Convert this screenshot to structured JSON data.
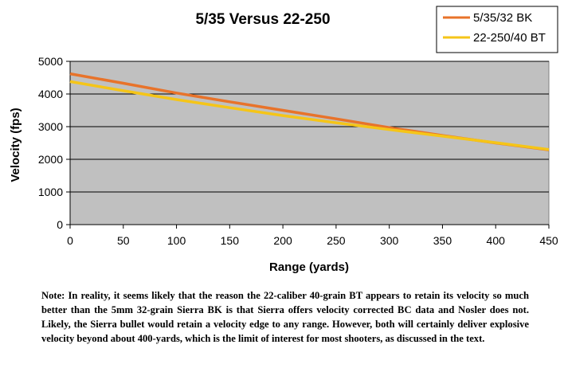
{
  "chart_data": {
    "type": "line",
    "title": "5/35 Versus 22-250",
    "xlabel": "Range (yards)",
    "ylabel": "Velocity (fps)",
    "xlim": [
      0,
      450
    ],
    "ylim": [
      0,
      5000
    ],
    "xticks": [
      0,
      50,
      100,
      150,
      200,
      250,
      300,
      350,
      400,
      450
    ],
    "yticks": [
      0,
      1000,
      2000,
      3000,
      4000,
      5000
    ],
    "grid": "horizontal",
    "legend": "top-right",
    "plot_background": "#c0c0c0",
    "series": [
      {
        "name": "5/35/32 BK",
        "color": "#e8732a",
        "x": [
          0,
          50,
          100,
          150,
          200,
          250,
          300,
          350,
          400,
          450
        ],
        "y": [
          4620,
          4330,
          4030,
          3760,
          3500,
          3240,
          2970,
          2730,
          2500,
          2290
        ]
      },
      {
        "name": "22-250/40 BT",
        "color": "#f5c518",
        "x": [
          0,
          50,
          100,
          150,
          200,
          250,
          300,
          350,
          400,
          450
        ],
        "y": [
          4380,
          4100,
          3830,
          3580,
          3340,
          3120,
          2910,
          2710,
          2510,
          2300
        ]
      }
    ]
  },
  "note": "Note: In reality, it seems likely that the reason the 22-caliber 40-grain BT appears to retain its velocity so much better than the 5mm 32-grain Sierra BK is that Sierra offers velocity corrected BC data and Nosler does not.  Likely, the Sierra bullet would retain a velocity edge to any range.  However, both will certainly deliver explosive velocity beyond about 400-yards, which is the limit of interest for most shooters, as discussed in the text."
}
